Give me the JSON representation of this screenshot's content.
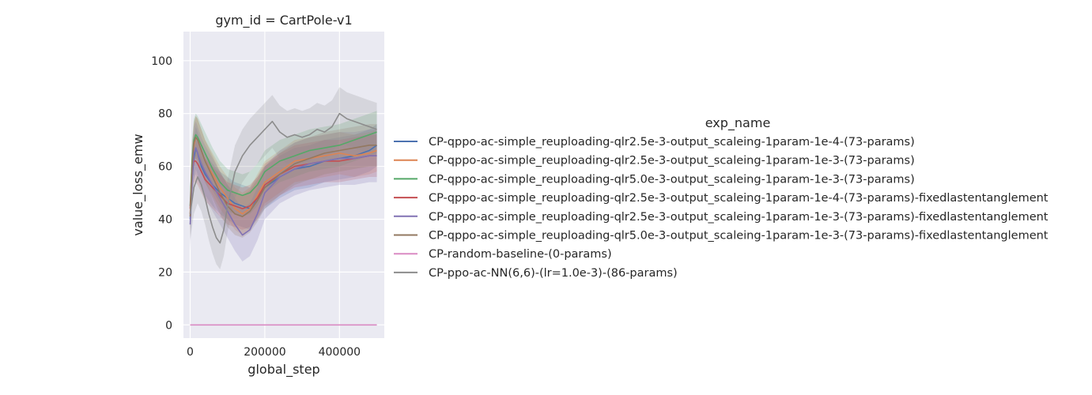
{
  "chart_data": {
    "type": "line",
    "title": "gym_id = CartPole-v1",
    "xlabel": "global_step",
    "ylabel": "value_loss_emw",
    "xlim": [
      -18000,
      520000
    ],
    "ylim": [
      -5,
      111
    ],
    "xticks": [
      0,
      200000,
      400000
    ],
    "yticks": [
      0,
      20,
      40,
      60,
      80,
      100
    ],
    "grid": true,
    "background": "#eaeaf2",
    "legend": {
      "title": "exp_name",
      "placement": "right"
    },
    "series": [
      {
        "name": "CP-qppo-ac-simple_reuploading-qlr2.5e-3-output_scaleing-1param-1e-4-(73-params)",
        "color": "#4c72b0",
        "x": [
          0,
          5000,
          10000,
          15000,
          20000,
          30000,
          40000,
          60000,
          80000,
          100000,
          120000,
          140000,
          160000,
          180000,
          200000,
          240000,
          280000,
          320000,
          360000,
          400000,
          440000,
          480000,
          500000
        ],
        "y": [
          40,
          55,
          63,
          67,
          65,
          60,
          57,
          53,
          50,
          48,
          46,
          45,
          44,
          48,
          52,
          56,
          59,
          60,
          62,
          63,
          64,
          66,
          68
        ],
        "band": 8
      },
      {
        "name": "CP-qppo-ac-simple_reuploading-qlr2.5e-3-output_scaleing-1param-1e-3-(73-params)",
        "color": "#dd8452",
        "x": [
          0,
          5000,
          10000,
          15000,
          20000,
          30000,
          40000,
          60000,
          80000,
          100000,
          120000,
          140000,
          160000,
          180000,
          200000,
          240000,
          280000,
          320000,
          360000,
          400000,
          440000,
          480000,
          500000
        ],
        "y": [
          42,
          60,
          68,
          71,
          70,
          66,
          62,
          57,
          52,
          48,
          44,
          42,
          44,
          49,
          54,
          58,
          62,
          63,
          64,
          65,
          64,
          65,
          66
        ],
        "band": 8
      },
      {
        "name": "CP-qppo-ac-simple_reuploading-qlr5.0e-3-output_scaleing-1param-1e-3-(73-params)",
        "color": "#55a868",
        "x": [
          0,
          5000,
          10000,
          15000,
          20000,
          30000,
          40000,
          60000,
          80000,
          100000,
          120000,
          140000,
          160000,
          180000,
          200000,
          240000,
          280000,
          320000,
          360000,
          400000,
          440000,
          480000,
          500000
        ],
        "y": [
          45,
          62,
          70,
          72,
          71,
          68,
          65,
          59,
          54,
          51,
          50,
          49,
          50,
          53,
          58,
          62,
          64,
          66,
          67,
          68,
          70,
          72,
          73
        ],
        "band": 8
      },
      {
        "name": "CP-qppo-ac-simple_reuploading-qlr2.5e-3-output_scaleing-1param-1e-4-(73-params)-fixedlastentanglement",
        "color": "#c44e52",
        "x": [
          0,
          5000,
          10000,
          15000,
          20000,
          30000,
          40000,
          60000,
          80000,
          100000,
          120000,
          140000,
          160000,
          180000,
          200000,
          240000,
          280000,
          320000,
          360000,
          400000,
          440000,
          480000,
          500000
        ],
        "y": [
          44,
          58,
          62,
          62,
          61,
          58,
          55,
          52,
          49,
          46,
          45,
          44,
          45,
          48,
          53,
          57,
          60,
          61,
          62,
          62,
          63,
          64,
          64
        ],
        "band": 8
      },
      {
        "name": "CP-qppo-ac-simple_reuploading-qlr2.5e-3-output_scaleing-1param-1e-3-(73-params)-fixedlastentanglement",
        "color": "#8172b3",
        "x": [
          0,
          5000,
          10000,
          15000,
          20000,
          30000,
          40000,
          60000,
          80000,
          100000,
          120000,
          140000,
          160000,
          180000,
          200000,
          240000,
          280000,
          320000,
          360000,
          400000,
          440000,
          480000,
          500000
        ],
        "y": [
          38,
          55,
          65,
          67,
          65,
          61,
          58,
          53,
          48,
          43,
          38,
          34,
          36,
          42,
          50,
          56,
          59,
          61,
          62,
          63,
          63,
          64,
          64
        ],
        "band": 10
      },
      {
        "name": "CP-qppo-ac-simple_reuploading-qlr5.0e-3-output_scaleing-1param-1e-3-(73-params)-fixedlastentanglement",
        "color": "#937860",
        "x": [
          0,
          5000,
          10000,
          15000,
          20000,
          30000,
          40000,
          60000,
          80000,
          100000,
          120000,
          140000,
          160000,
          180000,
          200000,
          240000,
          280000,
          320000,
          360000,
          400000,
          440000,
          480000,
          500000
        ],
        "y": [
          41,
          60,
          69,
          71,
          70,
          66,
          62,
          56,
          50,
          45,
          42,
          41,
          43,
          47,
          52,
          57,
          61,
          63,
          65,
          66,
          67,
          68,
          68
        ],
        "band": 8
      },
      {
        "name": "CP-random-baseline-(0-params)",
        "color": "#da8bc3",
        "x": [
          0,
          500000
        ],
        "y": [
          0,
          0
        ],
        "band": 0
      },
      {
        "name": "CP-ppo-ac-NN(6,6)-(lr=1.0e-3)-(86-params)",
        "color": "#8c8c8c",
        "x": [
          0,
          10000,
          20000,
          30000,
          40000,
          50000,
          60000,
          70000,
          80000,
          90000,
          100000,
          120000,
          140000,
          160000,
          180000,
          200000,
          220000,
          240000,
          260000,
          280000,
          300000,
          320000,
          340000,
          360000,
          380000,
          400000,
          420000,
          440000,
          460000,
          480000,
          500000
        ],
        "y": [
          42,
          52,
          56,
          53,
          48,
          42,
          37,
          33,
          31,
          36,
          45,
          58,
          64,
          68,
          71,
          74,
          77,
          73,
          71,
          72,
          71,
          72,
          74,
          73,
          75,
          80,
          78,
          77,
          76,
          75,
          74
        ],
        "band": 10
      }
    ]
  }
}
